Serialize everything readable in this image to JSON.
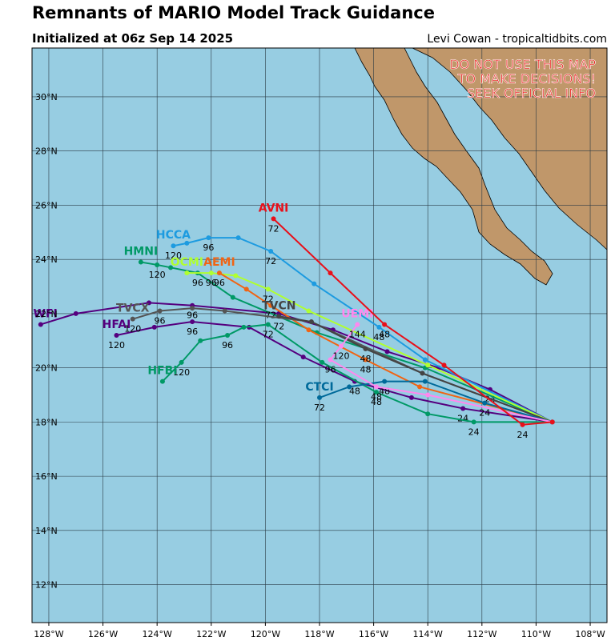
{
  "chart_data": {
    "type": "line",
    "title": "Remnants of MARIO Model Track Guidance",
    "subtitle": "Initialized at 06z Sep 14 2025",
    "credit": "Levi Cowan - tropicaltidbits.com",
    "warning": [
      "DO NOT USE THIS MAP",
      "TO MAKE DECISIONS!",
      "SEEK OFFICIAL INFO"
    ],
    "xlim": [
      -128.62,
      -107.38
    ],
    "ylim": [
      10.6,
      31.8
    ],
    "grid": true,
    "xticks": [
      {
        "value": -128,
        "label": "128°W"
      },
      {
        "value": -126,
        "label": "126°W"
      },
      {
        "value": -124,
        "label": "124°W"
      },
      {
        "value": -122,
        "label": "122°W"
      },
      {
        "value": -120,
        "label": "120°W"
      },
      {
        "value": -118,
        "label": "118°W"
      },
      {
        "value": -116,
        "label": "116°W"
      },
      {
        "value": -114,
        "label": "114°W"
      },
      {
        "value": -112,
        "label": "112°W"
      },
      {
        "value": -110,
        "label": "110°W"
      },
      {
        "value": -108,
        "label": "108°W"
      }
    ],
    "yticks": [
      {
        "value": 12,
        "label": "12°N"
      },
      {
        "value": 14,
        "label": "14°N"
      },
      {
        "value": 16,
        "label": "16°N"
      },
      {
        "value": 18,
        "label": "18°N"
      },
      {
        "value": 20,
        "label": "20°N"
      },
      {
        "value": 22,
        "label": "22°N"
      },
      {
        "value": 24,
        "label": "24°N"
      },
      {
        "value": 26,
        "label": "26°N"
      },
      {
        "value": 28,
        "label": "28°N"
      },
      {
        "value": 30,
        "label": "30°N"
      }
    ],
    "series": [
      {
        "name": "HWFI",
        "color": "#55007f",
        "x": [
          -109.4,
          -111.7,
          -113.6,
          -115.5,
          -117.5,
          -119.5,
          -122.7,
          -124.3,
          -127.0,
          -128.3
        ],
        "values": [
          18.0,
          19.2,
          20.0,
          20.6,
          21.4,
          22.0,
          22.3,
          22.4,
          22.0,
          21.6
        ],
        "labels": [
          {
            "index": 1,
            "text": "24"
          },
          {
            "index": 6,
            "text": "96"
          }
        ]
      },
      {
        "name": "HFAI",
        "color": "#55007f",
        "x": [
          -109.4,
          -112.7,
          -114.6,
          -116.7,
          -118.6,
          -120.6,
          -122.7,
          -124.1,
          -125.5
        ],
        "values": [
          18.0,
          18.5,
          18.9,
          19.5,
          20.4,
          21.5,
          21.7,
          21.5,
          21.2
        ],
        "labels": [
          {
            "index": 1,
            "text": "24"
          },
          {
            "index": 3,
            "text": "48"
          },
          {
            "index": 6,
            "text": "96"
          },
          {
            "index": 8,
            "text": "120"
          }
        ]
      },
      {
        "name": "HMNI",
        "color": "#009966",
        "x": [
          -109.4,
          -114.1,
          -118.1,
          -121.2,
          -122.5,
          -123.5,
          -124.0,
          -124.6
        ],
        "values": [
          18.0,
          20.0,
          21.3,
          22.6,
          23.5,
          23.7,
          23.8,
          23.9
        ],
        "labels": [
          {
            "index": 4,
            "text": "96"
          },
          {
            "index": 6,
            "text": "120"
          }
        ]
      },
      {
        "name": "HFBI",
        "color": "#009966",
        "x": [
          -109.4,
          -112.3,
          -114.0,
          -115.9,
          -117.9,
          -119.9,
          -120.8,
          -121.4,
          -122.4,
          -123.1,
          -123.8
        ],
        "values": [
          18.0,
          18.0,
          18.3,
          19.1,
          20.2,
          21.6,
          21.5,
          21.2,
          21.0,
          20.2,
          19.5
        ],
        "labels": [
          {
            "index": 1,
            "text": "24"
          },
          {
            "index": 3,
            "text": "48"
          },
          {
            "index": 5,
            "text": "72"
          },
          {
            "index": 7,
            "text": "96"
          },
          {
            "index": 9,
            "text": "120"
          }
        ]
      },
      {
        "name": "HCCA",
        "color": "#1d9be0",
        "x": [
          -109.4,
          -114.1,
          -115.8,
          -118.2,
          -119.8,
          -121.0,
          -122.1,
          -122.9,
          -123.4
        ],
        "values": [
          18.0,
          20.3,
          21.5,
          23.1,
          24.3,
          24.8,
          24.8,
          24.6,
          24.5
        ],
        "labels": [
          {
            "index": 2,
            "text": "48"
          },
          {
            "index": 4,
            "text": "72"
          },
          {
            "index": 6,
            "text": "96"
          },
          {
            "index": 8,
            "text": "120"
          }
        ]
      },
      {
        "name": "OCMI",
        "color": "#b0ff30",
        "x": [
          -109.4,
          -114.0,
          -118.4,
          -119.9,
          -121.1,
          -122.0,
          -122.9
        ],
        "values": [
          18.0,
          20.1,
          22.1,
          22.9,
          23.4,
          23.5,
          23.5
        ],
        "labels": [
          {
            "index": 3,
            "text": "72"
          },
          {
            "index": 5,
            "text": "96"
          }
        ]
      },
      {
        "name": "AEMI",
        "color": "#f06414",
        "x": [
          -109.4,
          -114.3,
          -116.3,
          -118.4,
          -119.8,
          -120.7,
          -121.7
        ],
        "values": [
          18.0,
          19.3,
          20.3,
          21.4,
          22.3,
          22.9,
          23.5
        ],
        "labels": [
          {
            "index": 2,
            "text": "48"
          },
          {
            "index": 4,
            "text": "72"
          },
          {
            "index": 6,
            "text": "96"
          }
        ]
      },
      {
        "name": "TVCX",
        "color": "#555555",
        "x": [
          -109.4,
          -114.2,
          -118.3,
          -121.5,
          -122.7,
          -123.9,
          -124.9
        ],
        "values": [
          18.0,
          19.8,
          21.7,
          22.1,
          22.2,
          22.1,
          21.8
        ],
        "labels": [
          {
            "index": 5,
            "text": "96"
          },
          {
            "index": 6,
            "text": "120"
          }
        ]
      },
      {
        "name": "TVCN",
        "color": "#444444",
        "x": [
          -109.4,
          -114.2,
          -116.3,
          -118.3,
          -119.5
        ],
        "values": [
          18.0,
          19.8,
          20.7,
          21.7,
          21.9
        ],
        "labels": [
          {
            "index": 2,
            "text": "48"
          },
          {
            "index": 4,
            "text": "72"
          }
        ]
      },
      {
        "name": "CTCI",
        "color": "#006a9a",
        "x": [
          -109.4,
          -111.9,
          -114.1,
          -115.6,
          -116.9,
          -118.0
        ],
        "values": [
          18.0,
          18.7,
          19.5,
          19.5,
          19.3,
          18.9
        ],
        "labels": [
          {
            "index": 1,
            "text": "24"
          },
          {
            "index": 3,
            "text": "48"
          },
          {
            "index": 5,
            "text": "72"
          }
        ]
      },
      {
        "name": "UEMI",
        "color": "#ff88ee",
        "x": [
          -109.4,
          -114.0,
          -115.9,
          -117.6,
          -117.2,
          -116.6
        ],
        "values": [
          18.0,
          19.0,
          19.3,
          20.3,
          20.8,
          21.6
        ],
        "labels": [
          {
            "index": 2,
            "text": "48"
          },
          {
            "index": 3,
            "text": "96"
          },
          {
            "index": 4,
            "text": "120"
          },
          {
            "index": 5,
            "text": "144"
          }
        ]
      },
      {
        "name": "AVNI",
        "color": "#e8101a",
        "x": [
          -109.4,
          -110.5,
          -113.4,
          -115.6,
          -117.6,
          -119.7
        ],
        "values": [
          18.0,
          17.9,
          20.1,
          21.6,
          23.5,
          25.5
        ],
        "labels": [
          {
            "index": 1,
            "text": "24"
          },
          {
            "index": 3,
            "text": "48"
          },
          {
            "index": 5,
            "text": "72"
          }
        ]
      }
    ]
  }
}
